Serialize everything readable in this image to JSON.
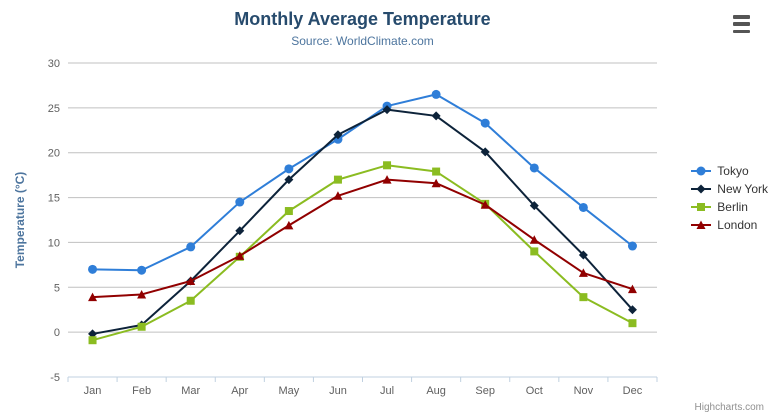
{
  "chart_data": {
    "type": "line",
    "title": "Monthly Average Temperature",
    "subtitle": "Source: WorldClimate.com",
    "categories": [
      "Jan",
      "Feb",
      "Mar",
      "Apr",
      "May",
      "Jun",
      "Jul",
      "Aug",
      "Sep",
      "Oct",
      "Nov",
      "Dec"
    ],
    "series": [
      {
        "name": "Tokyo",
        "color": "#2f7ed8",
        "marker": "circle",
        "values": [
          7.0,
          6.9,
          9.5,
          14.5,
          18.2,
          21.5,
          25.2,
          26.5,
          23.3,
          18.3,
          13.9,
          9.6
        ]
      },
      {
        "name": "New York",
        "color": "#0d233a",
        "marker": "diamond",
        "values": [
          -0.2,
          0.8,
          5.7,
          11.3,
          17.0,
          22.0,
          24.8,
          24.1,
          20.1,
          14.1,
          8.6,
          2.5
        ]
      },
      {
        "name": "Berlin",
        "color": "#8bbc21",
        "marker": "square",
        "values": [
          -0.9,
          0.6,
          3.5,
          8.4,
          13.5,
          17.0,
          18.6,
          17.9,
          14.3,
          9.0,
          3.9,
          1.0
        ]
      },
      {
        "name": "London",
        "color": "#910000",
        "marker": "triangle",
        "values": [
          3.9,
          4.2,
          5.7,
          8.5,
          11.9,
          15.2,
          17.0,
          16.6,
          14.2,
          10.3,
          6.6,
          4.8
        ]
      }
    ],
    "xlabel": "",
    "ylabel": "Temperature (°C)",
    "ylim": [
      -5,
      30
    ],
    "ytick_step": 5,
    "yticks": [
      -5,
      0,
      5,
      10,
      15,
      20,
      25,
      30
    ],
    "grid": true,
    "legend_position": "right"
  },
  "colors": {
    "title": "#274b6d",
    "subtitle": "#4d759e",
    "axis_title": "#4d759e",
    "axis_labels": "#606060",
    "grid_line": "#c0c0c0",
    "axis_line": "#c0d0e0",
    "legend_text": "#333333",
    "credit_text": "#909090"
  },
  "credit": "Highcharts.com"
}
